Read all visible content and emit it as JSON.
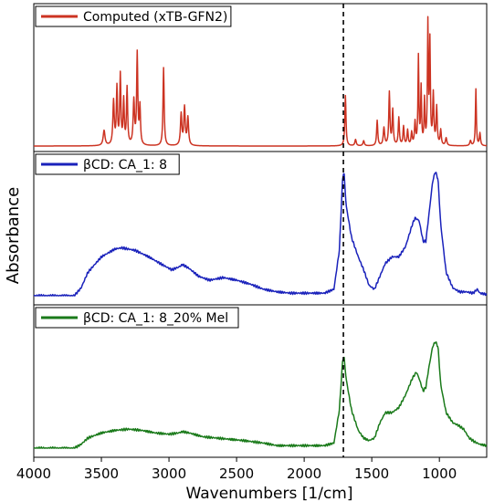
{
  "chart_data": {
    "type": "line",
    "xlabel": "Wavenumbers [1/cm]",
    "ylabel": "Absorbance",
    "xlim": [
      4000,
      650
    ],
    "x_reversed": true,
    "x_ticks": [
      "4000",
      "3500",
      "3000",
      "2500",
      "2000",
      "1500",
      "1000"
    ],
    "x_tick_values": [
      4000,
      3500,
      3000,
      2500,
      2000,
      1500,
      1000
    ],
    "grid": false,
    "reference_line_x": 1710,
    "panels": [
      {
        "series_name": "Computed (xTB-GFN2)",
        "color": "#cc3322",
        "legend_position": "top-left",
        "baseline": 0.0,
        "peaks": [
          {
            "x": 3480,
            "h": 0.12,
            "w": 8
          },
          {
            "x": 3410,
            "h": 0.35,
            "w": 6
          },
          {
            "x": 3385,
            "h": 0.45,
            "w": 5
          },
          {
            "x": 3360,
            "h": 0.55,
            "w": 5
          },
          {
            "x": 3335,
            "h": 0.35,
            "w": 5
          },
          {
            "x": 3310,
            "h": 0.45,
            "w": 5
          },
          {
            "x": 3260,
            "h": 0.35,
            "w": 6
          },
          {
            "x": 3235,
            "h": 0.72,
            "w": 5
          },
          {
            "x": 3215,
            "h": 0.3,
            "w": 5
          },
          {
            "x": 3040,
            "h": 0.62,
            "w": 5
          },
          {
            "x": 2910,
            "h": 0.25,
            "w": 6
          },
          {
            "x": 2885,
            "h": 0.3,
            "w": 6
          },
          {
            "x": 2860,
            "h": 0.22,
            "w": 6
          },
          {
            "x": 1695,
            "h": 0.4,
            "w": 5
          },
          {
            "x": 1620,
            "h": 0.05,
            "w": 6
          },
          {
            "x": 1560,
            "h": 0.04,
            "w": 6
          },
          {
            "x": 1460,
            "h": 0.2,
            "w": 5
          },
          {
            "x": 1410,
            "h": 0.14,
            "w": 6
          },
          {
            "x": 1370,
            "h": 0.42,
            "w": 5
          },
          {
            "x": 1345,
            "h": 0.28,
            "w": 5
          },
          {
            "x": 1300,
            "h": 0.22,
            "w": 5
          },
          {
            "x": 1265,
            "h": 0.15,
            "w": 5
          },
          {
            "x": 1235,
            "h": 0.12,
            "w": 5
          },
          {
            "x": 1205,
            "h": 0.1,
            "w": 5
          },
          {
            "x": 1180,
            "h": 0.18,
            "w": 5
          },
          {
            "x": 1155,
            "h": 0.7,
            "w": 4
          },
          {
            "x": 1135,
            "h": 0.45,
            "w": 4
          },
          {
            "x": 1110,
            "h": 0.35,
            "w": 4
          },
          {
            "x": 1085,
            "h": 0.95,
            "w": 4
          },
          {
            "x": 1070,
            "h": 0.8,
            "w": 4
          },
          {
            "x": 1045,
            "h": 0.4,
            "w": 5
          },
          {
            "x": 1020,
            "h": 0.3,
            "w": 5
          },
          {
            "x": 990,
            "h": 0.12,
            "w": 5
          },
          {
            "x": 950,
            "h": 0.06,
            "w": 6
          },
          {
            "x": 770,
            "h": 0.04,
            "w": 6
          },
          {
            "x": 730,
            "h": 0.45,
            "w": 4
          },
          {
            "x": 700,
            "h": 0.1,
            "w": 5
          }
        ]
      },
      {
        "series_name": "βCD: CA_1: 8",
        "color": "#1a22bb",
        "legend_position": "top-left",
        "baseline": 0.0,
        "curve": [
          [
            4000,
            0.0
          ],
          [
            3700,
            0.0
          ],
          [
            3650,
            0.06
          ],
          [
            3600,
            0.18
          ],
          [
            3500,
            0.3
          ],
          [
            3400,
            0.36
          ],
          [
            3350,
            0.37
          ],
          [
            3250,
            0.35
          ],
          [
            3150,
            0.3
          ],
          [
            3050,
            0.24
          ],
          [
            2980,
            0.2
          ],
          [
            2930,
            0.22
          ],
          [
            2900,
            0.24
          ],
          [
            2850,
            0.21
          ],
          [
            2780,
            0.15
          ],
          [
            2700,
            0.12
          ],
          [
            2600,
            0.14
          ],
          [
            2500,
            0.12
          ],
          [
            2400,
            0.09
          ],
          [
            2300,
            0.05
          ],
          [
            2200,
            0.03
          ],
          [
            2100,
            0.02
          ],
          [
            1950,
            0.02
          ],
          [
            1850,
            0.02
          ],
          [
            1780,
            0.05
          ],
          [
            1740,
            0.35
          ],
          [
            1715,
            0.92
          ],
          [
            1705,
            0.95
          ],
          [
            1690,
            0.7
          ],
          [
            1650,
            0.45
          ],
          [
            1600,
            0.3
          ],
          [
            1560,
            0.2
          ],
          [
            1520,
            0.08
          ],
          [
            1480,
            0.05
          ],
          [
            1440,
            0.15
          ],
          [
            1400,
            0.25
          ],
          [
            1350,
            0.3
          ],
          [
            1300,
            0.3
          ],
          [
            1250,
            0.38
          ],
          [
            1200,
            0.55
          ],
          [
            1180,
            0.6
          ],
          [
            1150,
            0.58
          ],
          [
            1120,
            0.42
          ],
          [
            1100,
            0.42
          ],
          [
            1080,
            0.6
          ],
          [
            1050,
            0.88
          ],
          [
            1030,
            0.96
          ],
          [
            1010,
            0.9
          ],
          [
            990,
            0.55
          ],
          [
            950,
            0.18
          ],
          [
            900,
            0.06
          ],
          [
            850,
            0.03
          ],
          [
            800,
            0.03
          ],
          [
            750,
            0.02
          ],
          [
            720,
            0.05
          ],
          [
            700,
            0.02
          ],
          [
            650,
            0.01
          ]
        ]
      },
      {
        "series_name": "βCD: CA_1: 8_20% Mel",
        "color": "#1a7a1a",
        "legend_position": "top-left",
        "baseline": 0.0,
        "curve": [
          [
            4000,
            0.0
          ],
          [
            3700,
            0.0
          ],
          [
            3650,
            0.03
          ],
          [
            3600,
            0.08
          ],
          [
            3500,
            0.12
          ],
          [
            3400,
            0.14
          ],
          [
            3300,
            0.15
          ],
          [
            3200,
            0.14
          ],
          [
            3100,
            0.12
          ],
          [
            3000,
            0.11
          ],
          [
            2930,
            0.12
          ],
          [
            2900,
            0.13
          ],
          [
            2850,
            0.12
          ],
          [
            2750,
            0.09
          ],
          [
            2650,
            0.08
          ],
          [
            2550,
            0.07
          ],
          [
            2450,
            0.06
          ],
          [
            2300,
            0.04
          ],
          [
            2200,
            0.02
          ],
          [
            2000,
            0.02
          ],
          [
            1850,
            0.02
          ],
          [
            1780,
            0.04
          ],
          [
            1740,
            0.3
          ],
          [
            1715,
            0.7
          ],
          [
            1705,
            0.72
          ],
          [
            1690,
            0.55
          ],
          [
            1650,
            0.3
          ],
          [
            1600,
            0.14
          ],
          [
            1560,
            0.08
          ],
          [
            1520,
            0.06
          ],
          [
            1480,
            0.08
          ],
          [
            1440,
            0.2
          ],
          [
            1400,
            0.28
          ],
          [
            1350,
            0.28
          ],
          [
            1300,
            0.32
          ],
          [
            1250,
            0.42
          ],
          [
            1200,
            0.55
          ],
          [
            1170,
            0.6
          ],
          [
            1150,
            0.55
          ],
          [
            1120,
            0.45
          ],
          [
            1100,
            0.48
          ],
          [
            1080,
            0.62
          ],
          [
            1050,
            0.8
          ],
          [
            1030,
            0.84
          ],
          [
            1010,
            0.8
          ],
          [
            990,
            0.5
          ],
          [
            950,
            0.28
          ],
          [
            900,
            0.2
          ],
          [
            860,
            0.18
          ],
          [
            820,
            0.15
          ],
          [
            780,
            0.08
          ],
          [
            740,
            0.05
          ],
          [
            700,
            0.03
          ],
          [
            650,
            0.02
          ]
        ]
      }
    ]
  }
}
